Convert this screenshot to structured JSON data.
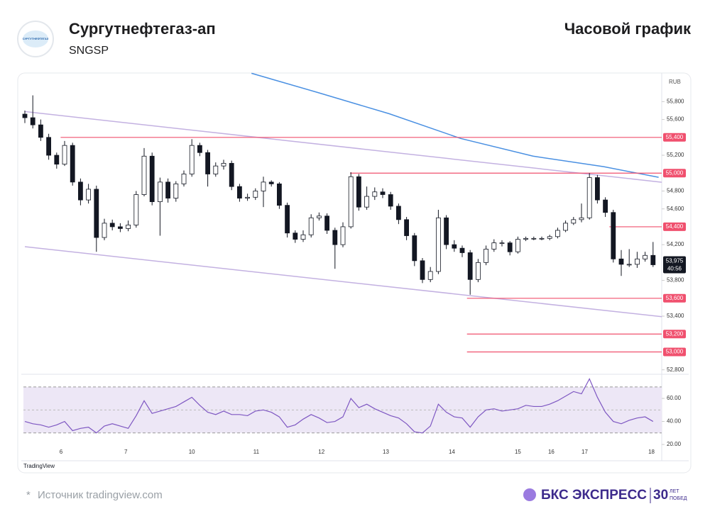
{
  "header": {
    "title": "Сургутнефтегаз-ап",
    "ticker": "SNGSP",
    "logo_text": "СУРГУТНЕФТЕГАЗ",
    "chart_kind": "Часовой график"
  },
  "footer": {
    "source": "Источник tradingview.com",
    "star": "*",
    "brand": "БКС ЭКСПРЕСС",
    "years": "30",
    "years_1": "ЛЕТ",
    "years_2": "ПОБЕД"
  },
  "chart_data": {
    "type": "candlestick",
    "watermark": "TradingView",
    "currency_label": "RUB",
    "up_color": "#ffffff",
    "down_color": "#131722",
    "ylim": [
      52750,
      56120
    ],
    "yticks": [
      {
        "value": 55800,
        "label": "55,800"
      },
      {
        "value": 55600,
        "label": "55,600"
      },
      {
        "value": 55200,
        "label": "55,200"
      },
      {
        "value": 54800,
        "label": "54,800"
      },
      {
        "value": 54600,
        "label": "54,600"
      },
      {
        "value": 54200,
        "label": "54,200"
      },
      {
        "value": 53800,
        "label": "53,800"
      },
      {
        "value": 53400,
        "label": "53,400"
      },
      {
        "value": 52800,
        "label": "52,800"
      }
    ],
    "xticks": [
      {
        "value": 4.55,
        "label": "6"
      },
      {
        "value": 12.7,
        "label": "7"
      },
      {
        "value": 21,
        "label": "10"
      },
      {
        "value": 29.1,
        "label": "11"
      },
      {
        "value": 37.3,
        "label": "12"
      },
      {
        "value": 45.4,
        "label": "13"
      },
      {
        "value": 53.7,
        "label": "14"
      },
      {
        "value": 62,
        "label": "15"
      },
      {
        "value": 66.2,
        "label": "16"
      },
      {
        "value": 70.4,
        "label": "17"
      },
      {
        "value": 78.8,
        "label": "18"
      }
    ],
    "candles": [
      [
        55660,
        55700,
        55560,
        55620
      ],
      [
        55620,
        55870,
        55500,
        55540
      ],
      [
        55540,
        55600,
        55360,
        55400
      ],
      [
        55400,
        55440,
        55150,
        55200
      ],
      [
        55200,
        55230,
        55050,
        55100
      ],
      [
        55100,
        55360,
        55080,
        55310
      ],
      [
        55310,
        55340,
        54860,
        54900
      ],
      [
        54900,
        54940,
        54640,
        54700
      ],
      [
        54700,
        54880,
        54660,
        54820
      ],
      [
        54820,
        54860,
        54120,
        54280
      ],
      [
        54280,
        54490,
        54250,
        54440
      ],
      [
        54440,
        54480,
        54360,
        54400
      ],
      [
        54400,
        54440,
        54340,
        54380
      ],
      [
        54380,
        54470,
        54350,
        54420
      ],
      [
        54420,
        54800,
        54390,
        54760
      ],
      [
        54760,
        55280,
        54740,
        55190
      ],
      [
        55190,
        55230,
        54640,
        54680
      ],
      [
        54680,
        54950,
        54300,
        54900
      ],
      [
        54900,
        54940,
        54670,
        54720
      ],
      [
        54720,
        54910,
        54680,
        54880
      ],
      [
        54880,
        55030,
        54850,
        54990
      ],
      [
        54990,
        55380,
        54960,
        55310
      ],
      [
        55310,
        55340,
        55190,
        55230
      ],
      [
        55230,
        55260,
        54850,
        54990
      ],
      [
        54990,
        55120,
        54960,
        55080
      ],
      [
        55080,
        55150,
        55040,
        55110
      ],
      [
        55110,
        55140,
        54810,
        54850
      ],
      [
        54850,
        54880,
        54680,
        54720
      ],
      [
        54720,
        54770,
        54690,
        54730
      ],
      [
        54730,
        54830,
        54700,
        54800
      ],
      [
        54800,
        54960,
        54620,
        54900
      ],
      [
        54900,
        54920,
        54850,
        54880
      ],
      [
        54880,
        54900,
        54600,
        54640
      ],
      [
        54640,
        54670,
        54280,
        54330
      ],
      [
        54330,
        54360,
        54220,
        54260
      ],
      [
        54260,
        54360,
        54230,
        54310
      ],
      [
        54310,
        54540,
        54280,
        54500
      ],
      [
        54500,
        54560,
        54470,
        54520
      ],
      [
        54520,
        54550,
        54320,
        54360
      ],
      [
        54360,
        54390,
        53930,
        54200
      ],
      [
        54200,
        54450,
        54170,
        54400
      ],
      [
        54400,
        55010,
        54380,
        54960
      ],
      [
        54960,
        54990,
        54580,
        54620
      ],
      [
        54620,
        54850,
        54590,
        54740
      ],
      [
        54740,
        54840,
        54700,
        54790
      ],
      [
        54790,
        54830,
        54720,
        54760
      ],
      [
        54760,
        54790,
        54590,
        54630
      ],
      [
        54630,
        54660,
        54430,
        54480
      ],
      [
        54480,
        54510,
        54250,
        54300
      ],
      [
        54300,
        54330,
        53960,
        54020
      ],
      [
        54020,
        54050,
        53770,
        53810
      ],
      [
        53810,
        53950,
        53780,
        53900
      ],
      [
        53900,
        54590,
        53870,
        54500
      ],
      [
        54500,
        54530,
        54150,
        54200
      ],
      [
        54200,
        54250,
        54120,
        54160
      ],
      [
        54160,
        54190,
        54060,
        54110
      ],
      [
        54110,
        54140,
        53640,
        53810
      ],
      [
        53810,
        54040,
        53780,
        54000
      ],
      [
        54000,
        54190,
        53970,
        54150
      ],
      [
        54150,
        54260,
        54120,
        54220
      ],
      [
        54220,
        54250,
        54180,
        54220
      ],
      [
        54220,
        54240,
        54080,
        54120
      ],
      [
        54120,
        54290,
        54100,
        54260
      ],
      [
        54260,
        54290,
        54240,
        54270
      ],
      [
        54270,
        54290,
        54250,
        54270
      ],
      [
        54270,
        54290,
        54250,
        54270
      ],
      [
        54270,
        54310,
        54250,
        54290
      ],
      [
        54290,
        54390,
        54270,
        54360
      ],
      [
        54360,
        54470,
        54340,
        54440
      ],
      [
        54440,
        54510,
        54420,
        54480
      ],
      [
        54480,
        54660,
        54450,
        54500
      ],
      [
        54500,
        55000,
        54480,
        54950
      ],
      [
        54950,
        54980,
        54660,
        54700
      ],
      [
        54700,
        54730,
        54510,
        54560
      ],
      [
        54560,
        54590,
        54000,
        54040
      ],
      [
        54040,
        54140,
        53850,
        53980
      ],
      [
        53980,
        54150,
        53950,
        53980
      ],
      [
        53980,
        54120,
        53940,
        54040
      ],
      [
        54040,
        54120,
        54010,
        54080
      ],
      [
        54080,
        54230,
        53950,
        53975
      ]
    ],
    "ma": {
      "color": "#4a90e2",
      "x": [
        28.5,
        36.8,
        45.8,
        54.8,
        63.9,
        72.8,
        79.7
      ],
      "values": [
        56117,
        55903,
        55665,
        55388,
        55190,
        55072,
        54953
      ]
    },
    "trendlines": [
      {
        "color": "#c3b1e1",
        "x": [
          0,
          80.1
        ],
        "values": [
          55689,
          54898
        ]
      },
      {
        "color": "#c3b1e1",
        "x": [
          0,
          80.1
        ],
        "values": [
          54177,
          53394
        ]
      }
    ],
    "levels": [
      {
        "value": 55400,
        "label": "55,400",
        "start": 4.5,
        "color": "#f0506e"
      },
      {
        "value": 55000,
        "label": "55,000",
        "start": 40.9,
        "color": "#f0506e"
      },
      {
        "value": 54400,
        "label": "54,400",
        "start": 73.5,
        "color": "#f0506e"
      },
      {
        "value": 53600,
        "label": "53,600",
        "start": 55.6,
        "color": "#f0506e"
      },
      {
        "value": 53200,
        "label": "53,200",
        "start": 55.6,
        "color": "#f0506e"
      },
      {
        "value": 53000,
        "label": "53,000",
        "start": 55.6,
        "color": "#f0506e"
      }
    ],
    "last": {
      "value": 53975,
      "label": "53,975",
      "time": "40:56"
    },
    "rsi": {
      "color": "#7e57c2",
      "fill": "#ede7f6",
      "ylim": [
        12,
        81
      ],
      "yticks": [
        {
          "value": 60,
          "label": "60.00"
        },
        {
          "value": 40,
          "label": "40.00"
        },
        {
          "value": 20,
          "label": "20.00"
        }
      ],
      "bands": [
        70,
        30
      ],
      "mid": 50,
      "values": [
        40,
        38,
        37,
        35,
        37,
        40,
        32,
        34,
        35,
        30,
        36,
        38,
        36,
        34,
        45,
        58,
        47,
        49,
        51,
        53,
        57,
        61,
        54,
        48,
        46,
        49,
        46,
        46,
        45,
        49,
        50,
        48,
        44,
        35,
        37,
        42,
        46,
        43,
        39,
        40,
        44,
        60,
        52,
        55,
        51,
        48,
        45,
        43,
        38,
        31,
        30,
        36,
        55,
        48,
        44,
        43,
        35,
        44,
        50,
        51,
        49,
        50,
        51,
        54,
        53,
        53,
        55,
        58,
        62,
        66,
        64,
        77,
        61,
        48,
        40,
        38,
        41,
        43,
        44,
        40
      ]
    }
  }
}
